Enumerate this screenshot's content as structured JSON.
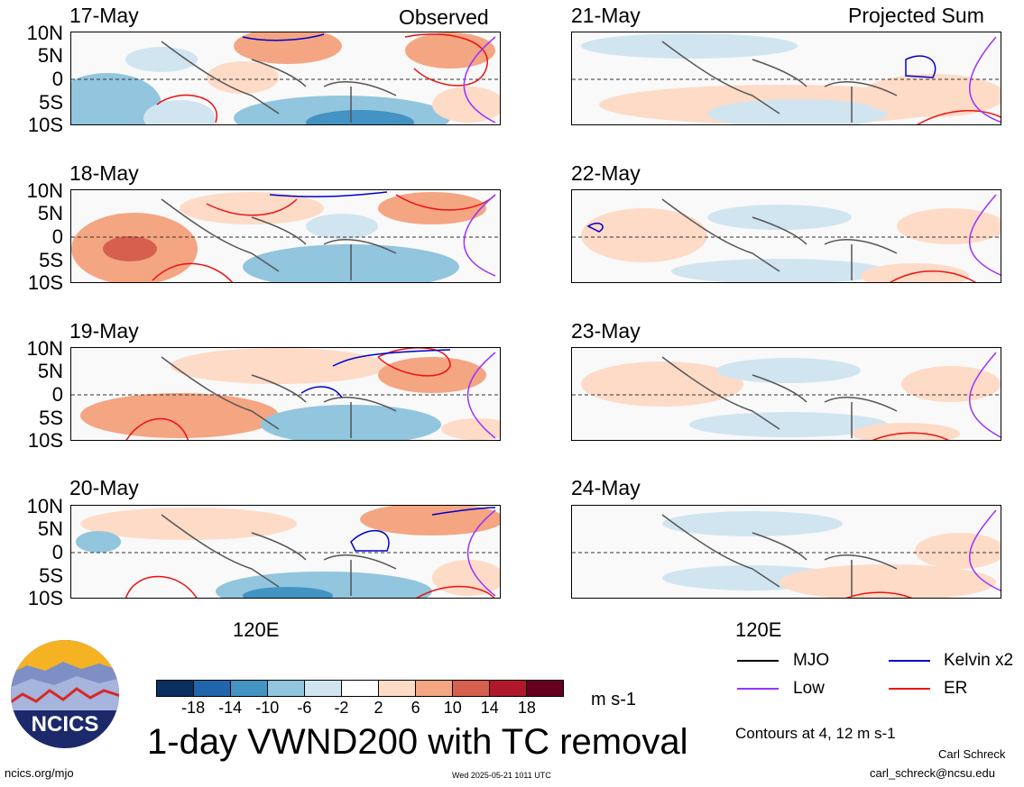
{
  "panels": [
    {
      "date": "17-May",
      "tag": "Observed"
    },
    {
      "date": "18-May",
      "tag": ""
    },
    {
      "date": "19-May",
      "tag": ""
    },
    {
      "date": "20-May",
      "tag": ""
    },
    {
      "date": "21-May",
      "tag": "Projected Sum"
    },
    {
      "date": "22-May",
      "tag": ""
    },
    {
      "date": "23-May",
      "tag": ""
    },
    {
      "date": "24-May",
      "tag": ""
    }
  ],
  "lat_labels": [
    "10N",
    "5N",
    "0",
    "5S",
    "10S"
  ],
  "lon_label": "120E",
  "colorbar": {
    "unit": "m s-1",
    "ticks": [
      "-18",
      "-14",
      "-10",
      "-6",
      "-2",
      "2",
      "6",
      "10",
      "14",
      "18"
    ],
    "colors": [
      "#0b2f5e",
      "#2166ac",
      "#4393c3",
      "#92c5de",
      "#d1e5f0",
      "#ffffff",
      "#fddbc7",
      "#f4a582",
      "#d6604d",
      "#b2182b",
      "#67001f"
    ]
  },
  "title": "1-day VWND200 with TC removal",
  "legend": {
    "items": [
      {
        "label": "MJO",
        "color": "#000000"
      },
      {
        "label": "Kelvin x2",
        "color": "#0000cc"
      },
      {
        "label": "Low",
        "color": "#9933ff"
      },
      {
        "label": "ER",
        "color": "#ee1111"
      }
    ],
    "contours_note": "Contours at 4, 12 m s-1"
  },
  "credits": {
    "author": "Carl Schreck",
    "email": "carl_schreck@ncsu.edu",
    "site": "ncics.org/mjo",
    "timestamp": "Wed 2025-05-21 1011 UTC",
    "logo_text": "NCICS"
  }
}
